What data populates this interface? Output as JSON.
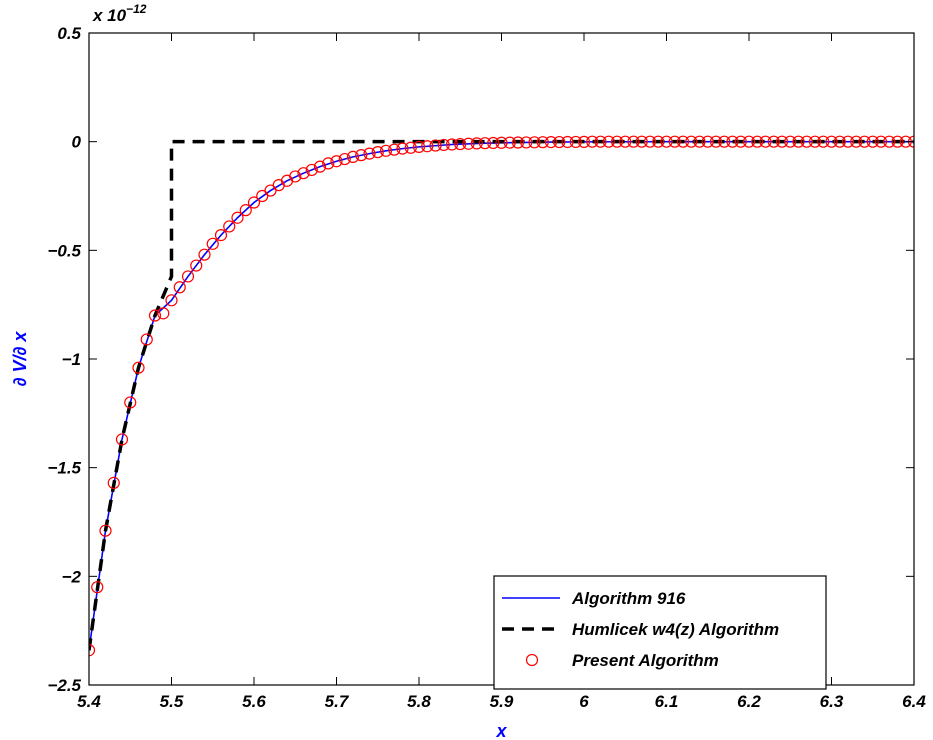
{
  "chart_data": {
    "type": "line",
    "title": "",
    "xlabel": "x",
    "ylabel": "∂ V/∂ x",
    "exponent_label": "x 10",
    "exponent_power": "−12",
    "xlim": [
      5.4,
      6.4
    ],
    "ylim": [
      -2.5,
      0.5
    ],
    "x_ticks": [
      5.4,
      5.5,
      5.6,
      5.7,
      5.8,
      5.9,
      6.0,
      6.1,
      6.2,
      6.3,
      6.4
    ],
    "x_tick_labels": [
      "5.4",
      "5.5",
      "5.6",
      "5.7",
      "5.8",
      "5.9",
      "6",
      "6.1",
      "6.2",
      "6.3",
      "6.4"
    ],
    "y_ticks": [
      0.5,
      0,
      -0.5,
      -1,
      -1.5,
      -2,
      -2.5
    ],
    "y_tick_labels": [
      "0.5",
      "0",
      "−0.5",
      "−1",
      "−1.5",
      "−2",
      "−2.5"
    ],
    "grid": false,
    "legend_position": "bottom-right",
    "series": [
      {
        "name": "Algorithm 916",
        "style": "solid",
        "color": "#0000ff",
        "x": [
          5.4,
          5.42,
          5.44,
          5.46,
          5.48,
          5.5,
          5.52,
          5.54,
          5.56,
          5.58,
          5.6,
          5.62,
          5.64,
          5.66,
          5.68,
          5.7,
          5.72,
          5.74,
          5.76,
          5.78,
          5.8,
          5.84,
          5.88,
          5.92,
          5.96,
          6.0,
          6.1,
          6.2,
          6.3,
          6.4
        ],
        "y": [
          -2.34,
          -1.79,
          -1.37,
          -1.04,
          -0.8,
          -0.73,
          -0.62,
          -0.52,
          -0.43,
          -0.35,
          -0.28,
          -0.225,
          -0.18,
          -0.145,
          -0.115,
          -0.09,
          -0.07,
          -0.055,
          -0.042,
          -0.032,
          -0.024,
          -0.013,
          -0.007,
          -0.004,
          -0.002,
          -0.001,
          0,
          0,
          0,
          0
        ]
      },
      {
        "name": "Humlicek w4(z) Algorithm",
        "style": "dashed",
        "color": "#000000",
        "x": [
          5.4,
          5.42,
          5.44,
          5.46,
          5.48,
          5.5,
          5.5,
          5.6,
          5.8,
          6.0,
          6.2,
          6.4
        ],
        "y": [
          -2.34,
          -1.79,
          -1.37,
          -1.04,
          -0.8,
          -0.62,
          0,
          0,
          0,
          0,
          0,
          0
        ]
      },
      {
        "name": "Present Algorithm",
        "style": "markers",
        "marker": "circle",
        "color": "#ff0000",
        "x": [
          5.4,
          5.41,
          5.42,
          5.43,
          5.44,
          5.45,
          5.46,
          5.47,
          5.48,
          5.49,
          5.5,
          5.51,
          5.52,
          5.53,
          5.54,
          5.55,
          5.56,
          5.57,
          5.58,
          5.59,
          5.6,
          5.61,
          5.62,
          5.63,
          5.64,
          5.65,
          5.66,
          5.67,
          5.68,
          5.69,
          5.7,
          5.71,
          5.72,
          5.73,
          5.74,
          5.75,
          5.76,
          5.77,
          5.78,
          5.79,
          5.8,
          5.81,
          5.82,
          5.83,
          5.84,
          5.85,
          5.86,
          5.87,
          5.88,
          5.89,
          5.9,
          5.91,
          5.92,
          5.93,
          5.94,
          5.95,
          5.96,
          5.97,
          5.98,
          5.99,
          6.0,
          6.01,
          6.02,
          6.03,
          6.04,
          6.05,
          6.06,
          6.07,
          6.08,
          6.09,
          6.1,
          6.11,
          6.12,
          6.13,
          6.14,
          6.15,
          6.16,
          6.17,
          6.18,
          6.19,
          6.2,
          6.21,
          6.22,
          6.23,
          6.24,
          6.25,
          6.26,
          6.27,
          6.28,
          6.29,
          6.3,
          6.31,
          6.32,
          6.33,
          6.34,
          6.35,
          6.36,
          6.37,
          6.38,
          6.39,
          6.4
        ],
        "y": [
          -2.34,
          -2.05,
          -1.79,
          -1.57,
          -1.37,
          -1.2,
          -1.04,
          -0.91,
          -0.8,
          -0.79,
          -0.73,
          -0.67,
          -0.62,
          -0.57,
          -0.52,
          -0.47,
          -0.43,
          -0.39,
          -0.35,
          -0.315,
          -0.28,
          -0.25,
          -0.225,
          -0.2,
          -0.18,
          -0.16,
          -0.145,
          -0.13,
          -0.115,
          -0.1,
          -0.09,
          -0.08,
          -0.07,
          -0.062,
          -0.055,
          -0.048,
          -0.042,
          -0.037,
          -0.032,
          -0.028,
          -0.024,
          -0.021,
          -0.018,
          -0.015,
          -0.013,
          -0.011,
          -0.0095,
          -0.008,
          -0.007,
          -0.006,
          -0.005,
          -0.0045,
          -0.004,
          -0.0035,
          -0.003,
          -0.0025,
          -0.002,
          -0.0018,
          -0.0015,
          -0.0012,
          -0.001,
          0,
          0,
          0,
          0,
          0,
          0,
          0,
          0,
          0,
          0,
          0,
          0,
          0,
          0,
          0,
          0,
          0,
          0,
          0,
          0,
          0,
          0,
          0,
          0,
          0,
          0,
          0,
          0,
          0,
          0,
          0,
          0,
          0,
          0,
          0,
          0,
          0,
          0,
          0,
          0
        ]
      }
    ]
  }
}
